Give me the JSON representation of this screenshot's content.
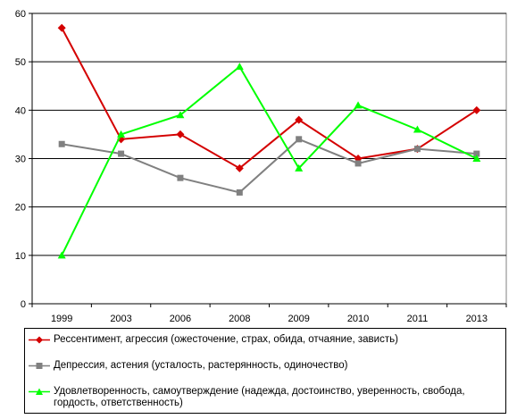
{
  "chart_data": {
    "type": "line",
    "categories": [
      "1999",
      "2003",
      "2006",
      "2008",
      "2009",
      "2010",
      "2011",
      "2013"
    ],
    "ylim": [
      0,
      60
    ],
    "yticks": [
      0,
      10,
      20,
      30,
      40,
      50,
      60
    ],
    "grid": true,
    "legend_position": "bottom",
    "series": [
      {
        "name": "Рессентимент, агрессия (ожесточение, страх, обида, отчаяние, зависть)",
        "color": "#d40000",
        "marker": "diamond",
        "values": [
          57,
          34,
          35,
          28,
          38,
          30,
          32,
          40
        ]
      },
      {
        "name": "Депрессия, астения (усталость, растерянность, одиночество)",
        "color": "#808080",
        "marker": "square",
        "values": [
          33,
          31,
          26,
          23,
          34,
          29,
          32,
          31
        ]
      },
      {
        "name": "Удовлетворенность, самоутверждение (надежда, достоинство, уверенность, свобода, гордость, ответственность)",
        "color": "#00ff00",
        "marker": "triangle",
        "values": [
          10,
          35,
          39,
          49,
          28,
          41,
          36,
          30
        ]
      }
    ]
  }
}
